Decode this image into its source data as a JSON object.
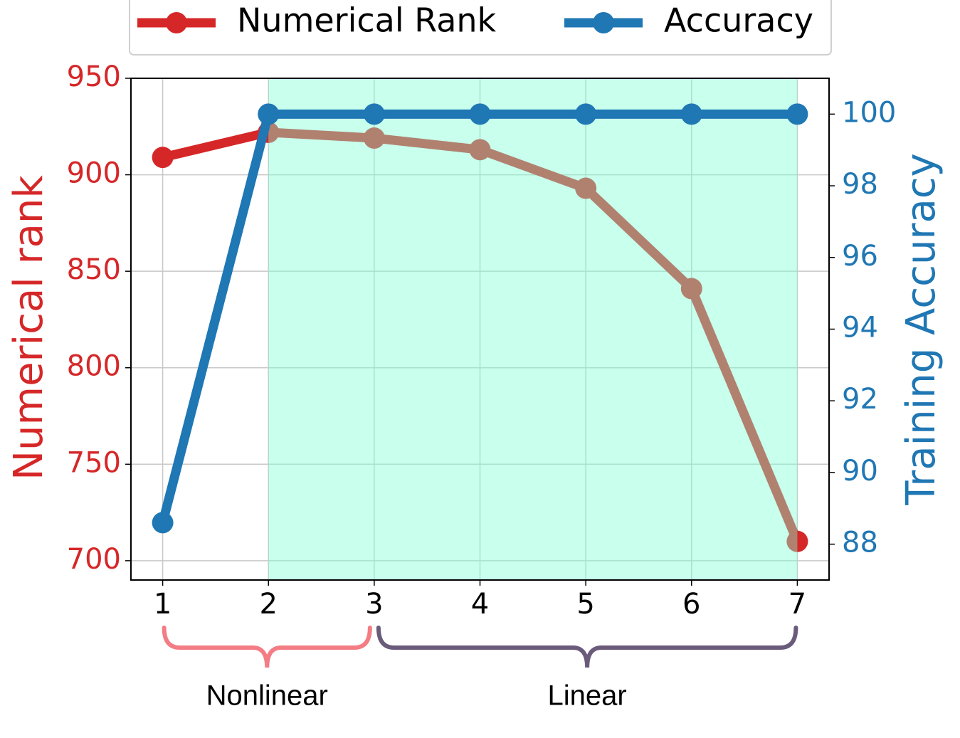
{
  "chart_data": {
    "type": "line",
    "x": [
      1,
      2,
      3,
      4,
      5,
      6,
      7
    ],
    "xlim": [
      0.7,
      7.3
    ],
    "xticks": [
      1,
      2,
      3,
      4,
      5,
      6,
      7
    ],
    "ylim": [
      690,
      950
    ],
    "yticks": [
      700,
      750,
      800,
      850,
      900,
      950
    ],
    "y2lim": [
      87,
      101
    ],
    "y2ticks": [
      88,
      90,
      92,
      94,
      96,
      98,
      100
    ],
    "ylabel": "Numerical rank",
    "ylabel_color": "#d62728",
    "y2label": "Training Accuracy",
    "y2label_color": "#1f77b4",
    "grid": true,
    "legend": "upper center",
    "series": [
      {
        "name": "Numerical Rank",
        "color": "#d62728",
        "values": [
          909,
          922,
          919,
          913,
          893,
          841,
          710
        ]
      },
      {
        "name": "Accuracy",
        "color": "#1f77b4",
        "axis": "y2",
        "values": [
          88.6,
          100,
          100,
          100,
          100,
          100,
          100
        ]
      }
    ],
    "shade": {
      "x": [
        2,
        7
      ],
      "color": "#7fffd4"
    },
    "annotations": [
      {
        "text": "Nonlinear",
        "x": [
          1,
          3
        ],
        "color": "#f47c84"
      },
      {
        "text": "Linear",
        "x": [
          3,
          7
        ],
        "color": "#6b5b7b"
      }
    ]
  }
}
